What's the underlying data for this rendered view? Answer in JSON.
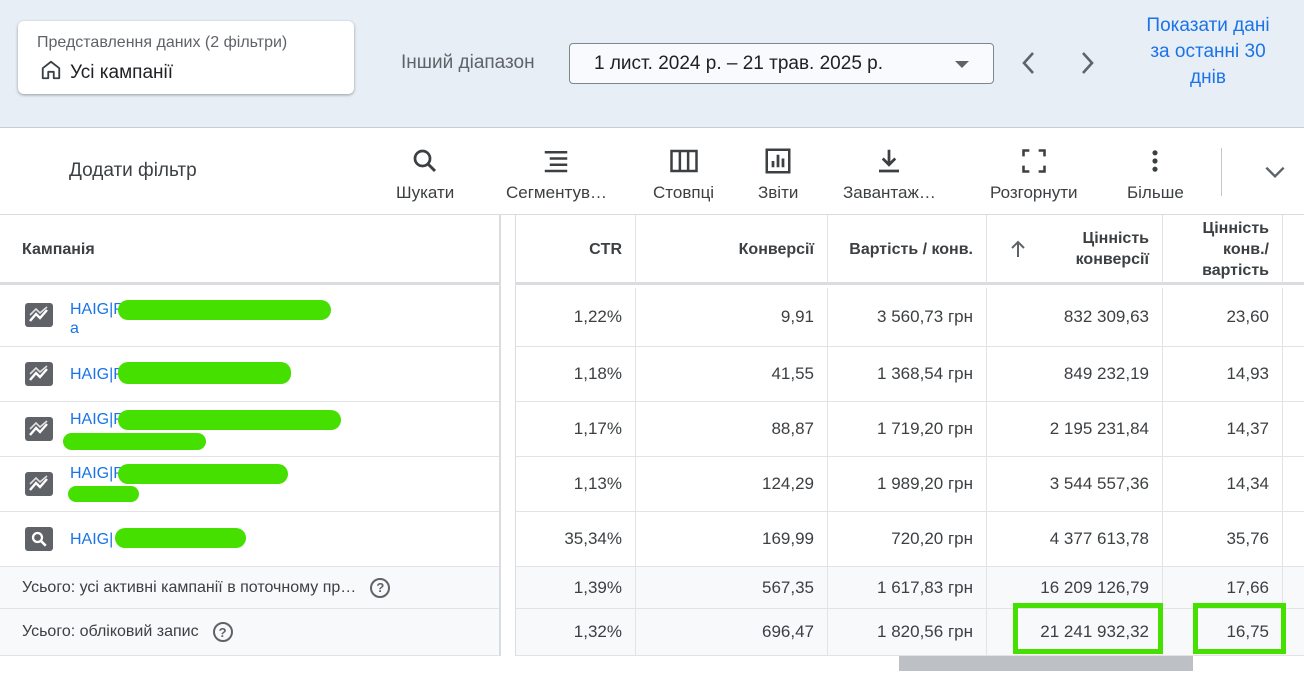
{
  "view": {
    "subtitle": "Представлення даних (2 фільтри)",
    "title": "Усі кампанії"
  },
  "date_range": {
    "label": "Інший діапазон",
    "value": "1 лист. 2024 р. – 21 трав. 2025 р."
  },
  "show_last_30": "Показати дані за останні 30 днів",
  "toolbar": {
    "add_filter": "Додати фільтр",
    "search": "Шукати",
    "segment": "Сегментув…",
    "columns": "Стовпці",
    "reports": "Звіти",
    "download": "Завантаж…",
    "expand": "Розгорнути",
    "more": "Більше"
  },
  "table": {
    "headers": {
      "campaign": "Кампанія",
      "ctr": "CTR",
      "conversions": "Конверсії",
      "cost_per_conv": "Вартість / конв.",
      "conv_value_1": "Цінність",
      "conv_value_2": "конверсії",
      "value_per_cost_1": "Цінність",
      "value_per_cost_2": "конв./",
      "value_per_cost_3": "вартість"
    },
    "rows": [
      {
        "name": "HAIG|P",
        "name2": "a",
        "type": "performance",
        "ctr": "1,22%",
        "conv": "9,91",
        "cpc": "3 560,73 грн",
        "value": "832 309,63",
        "vpc": "23,60"
      },
      {
        "name": "HAIG|P",
        "name2": "",
        "type": "performance",
        "ctr": "1,18%",
        "conv": "41,55",
        "cpc": "1 368,54 грн",
        "value": "849 232,19",
        "vpc": "14,93"
      },
      {
        "name": "HAIG|P",
        "name2": "",
        "type": "performance",
        "ctr": "1,17%",
        "conv": "88,87",
        "cpc": "1 719,20 грн",
        "value": "2 195 231,84",
        "vpc": "14,37"
      },
      {
        "name": "HAIG|P",
        "name2": "",
        "type": "performance",
        "ctr": "1,13%",
        "conv": "124,29",
        "cpc": "1 989,20 грн",
        "value": "3 544 557,36",
        "vpc": "14,34"
      },
      {
        "name": "HAIG|",
        "name2": "",
        "type": "search",
        "ctr": "35,34%",
        "conv": "169,99",
        "cpc": "720,20 грн",
        "value": "4 377 613,78",
        "vpc": "35,76"
      }
    ],
    "total_active": {
      "label": "Усього: усі активні кампанії в поточному пр…",
      "ctr": "1,39%",
      "conv": "567,35",
      "cpc": "1 617,83 грн",
      "value": "16 209 126,79",
      "vpc": "17,66"
    },
    "total_account": {
      "label": "Усього: обліковий запис",
      "ctr": "1,32%",
      "conv": "696,47",
      "cpc": "1 820,56 грн",
      "value": "21 241 932,32",
      "vpc": "16,75"
    }
  },
  "colors": {
    "accent": "#1a73e8",
    "highlight": "#46e000",
    "topbar": "#e8eef6"
  }
}
